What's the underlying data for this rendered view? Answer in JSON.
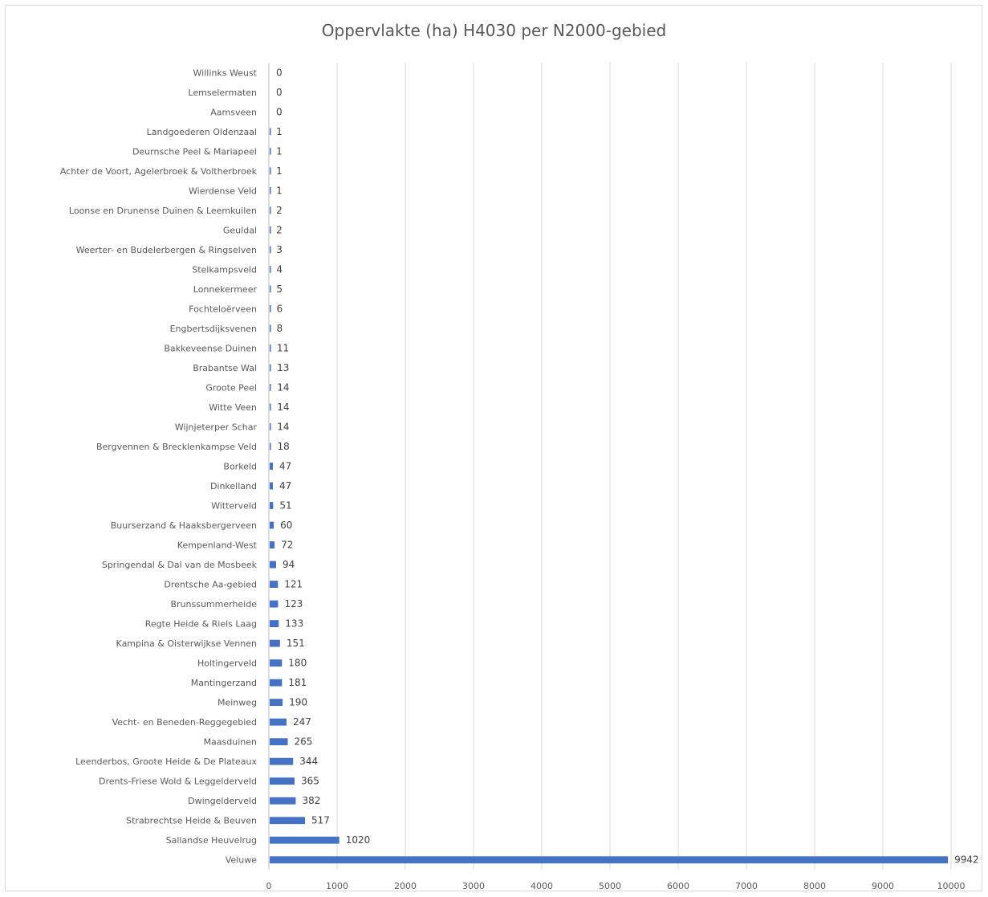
{
  "chart_data": {
    "type": "bar",
    "orientation": "horizontal",
    "title": "Oppervlakte (ha) H4030 per N2000-gebied",
    "xlabel": "",
    "ylabel": "",
    "xlim": [
      0,
      10000
    ],
    "x_ticks": [
      0,
      1000,
      2000,
      3000,
      4000,
      5000,
      6000,
      7000,
      8000,
      9000,
      10000
    ],
    "grid": "vertical",
    "legend": "none",
    "bar_color": "#4472c4",
    "categories": [
      "Willinks Weust",
      "Lemselermaten",
      "Aamsveen",
      "Landgoederen Oldenzaal",
      "Deurnsche Peel & Mariapeel",
      "Achter de Voort, Agelerbroek & Voltherbroek",
      "Wierdense Veld",
      "Loonse en Drunense Duinen & Leemkuilen",
      "Geuldal",
      "Weerter- en Budelerbergen & Ringselven",
      "Stelkampsveld",
      "Lonnekermeer",
      "Fochteloërveen",
      "Engbertsdijksvenen",
      "Bakkeveense Duinen",
      "Brabantse Wal",
      "Groote Peel",
      "Witte Veen",
      "Wijnjeterper Schar",
      "Bergvennen & Brecklenkampse Veld",
      "Borkeld",
      "Dinkelland",
      "Witterveld",
      "Buurserzand & Haaksbergerveen",
      "Kempenland-West",
      "Springendal & Dal van de Mosbeek",
      "Drentsche Aa-gebied",
      "Brunssummerheide",
      "Regte Heide & Riels Laag",
      "Kampina & Oisterwijkse Vennen",
      "Holtingerveld",
      "Mantingerzand",
      "Meinweg",
      "Vecht- en Beneden-Reggegebied",
      "Maasduinen",
      "Leenderbos, Groote Heide & De Plateaux",
      "Drents-Friese Wold & Leggelderveld",
      "Dwingelderveld",
      "Strabrechtse Heide & Beuven",
      "Sallandse Heuvelrug",
      "Veluwe"
    ],
    "values": [
      0,
      0,
      0,
      1,
      1,
      1,
      1,
      2,
      2,
      3,
      4,
      5,
      6,
      8,
      11,
      13,
      14,
      14,
      14,
      18,
      47,
      47,
      51,
      60,
      72,
      94,
      121,
      123,
      133,
      151,
      180,
      181,
      190,
      247,
      265,
      344,
      365,
      382,
      517,
      1020,
      9942
    ]
  }
}
